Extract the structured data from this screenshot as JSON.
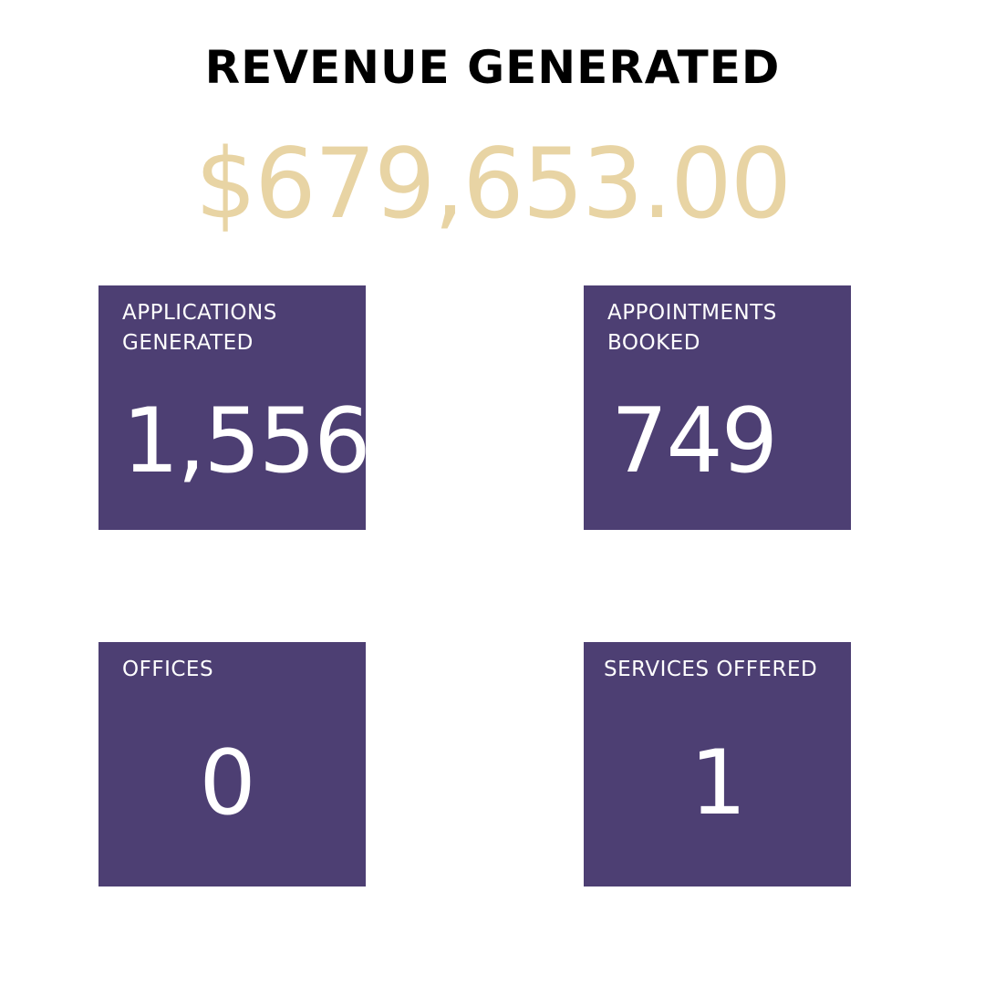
{
  "title": "REVENUE GENERATED",
  "revenue": "$679,653.00",
  "colors": {
    "card_background": "#4d3f73",
    "revenue_text": "#e8d4a4",
    "title_text": "#000000",
    "card_text": "#ffffff"
  },
  "cards": [
    {
      "label_line1": "APPLICATIONS",
      "label_line2": "GENERATED",
      "value": "1,556"
    },
    {
      "label_line1": "APPOINTMENTS",
      "label_line2": "BOOKED",
      "value": "749"
    },
    {
      "label_line1": "OFFICES",
      "label_line2": "",
      "value": "0"
    },
    {
      "label_line1": "SERVICES OFFERED",
      "label_line2": "",
      "value": "1"
    }
  ]
}
